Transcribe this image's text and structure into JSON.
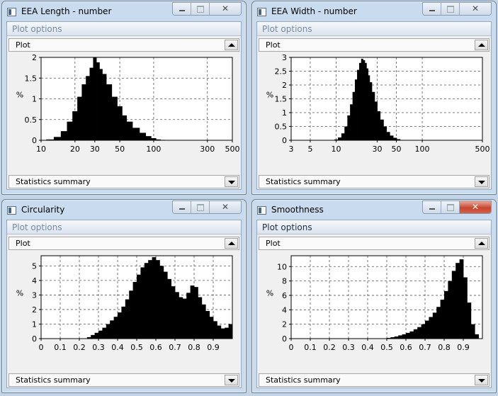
{
  "windows": [
    {
      "id": "length",
      "title": "EEA Length - number",
      "plot_options_label": "Plot options",
      "plot_combo_label": "Plot",
      "stats_combo_label": "Statistics summary",
      "window_controls": {
        "minimize": "minimize-icon",
        "maximize": "maximize-icon",
        "close_glyph": "✕"
      },
      "active": false
    },
    {
      "id": "width",
      "title": "EEA Width - number",
      "plot_options_label": "Plot options",
      "plot_combo_label": "Plot",
      "stats_combo_label": "Statistics summary",
      "window_controls": {
        "minimize": "minimize-icon",
        "maximize": "maximize-icon",
        "close_glyph": "✕"
      },
      "active": false
    },
    {
      "id": "circularity",
      "title": "Circularity",
      "plot_options_label": "Plot options",
      "plot_combo_label": "Plot",
      "stats_combo_label": "Statistics summary",
      "window_controls": {
        "minimize": "minimize-icon",
        "maximize": "maximize-icon",
        "close_glyph": "✕"
      },
      "active": false
    },
    {
      "id": "smoothness",
      "title": "Smoothness",
      "plot_options_label": "Plot options",
      "plot_combo_label": "Plot",
      "stats_combo_label": "Statistics summary",
      "window_controls": {
        "minimize": "minimize-icon",
        "maximize": "maximize-icon",
        "close_glyph": "✕"
      },
      "active": true
    }
  ],
  "colors": {
    "bars": "#000000",
    "close_active": "#c8462f",
    "desktop": "#c3d4e7",
    "frame": "#c9dbee"
  },
  "chart_data": [
    {
      "type": "bar",
      "xscale": "log",
      "xlim": [
        10,
        500
      ],
      "ylim": [
        0,
        2
      ],
      "ylabel": "%",
      "xticks": [
        10,
        20,
        30,
        50,
        100,
        300,
        500
      ],
      "yticks": [
        0,
        0.5,
        1,
        1.5,
        2
      ],
      "grid": true,
      "x": [
        12,
        14,
        16,
        18,
        20,
        22,
        24,
        26,
        28,
        30,
        32,
        34,
        36,
        40,
        45,
        50,
        55,
        60,
        70,
        80,
        90,
        100,
        110,
        120
      ],
      "values": [
        0.02,
        0.08,
        0.22,
        0.45,
        0.7,
        1.05,
        1.35,
        1.55,
        1.75,
        2.0,
        1.88,
        1.72,
        1.6,
        1.35,
        1.05,
        0.82,
        0.6,
        0.45,
        0.3,
        0.18,
        0.1,
        0.05,
        0.02,
        0.01
      ]
    },
    {
      "type": "bar",
      "xscale": "log",
      "xlim": [
        3,
        500
      ],
      "ylim": [
        0,
        3
      ],
      "ylabel": "%",
      "xticks": [
        3,
        5,
        10,
        30,
        50,
        100,
        500
      ],
      "yticks": [
        0,
        0.5,
        1,
        1.5,
        2,
        2.5,
        3
      ],
      "grid": true,
      "x": [
        10,
        11,
        12,
        13,
        14,
        15,
        16,
        17,
        18,
        19,
        20,
        21,
        22,
        23,
        24,
        25,
        27,
        29,
        31,
        34,
        37,
        40,
        44,
        48,
        53,
        58
      ],
      "values": [
        0.03,
        0.1,
        0.25,
        0.5,
        0.9,
        1.3,
        1.75,
        2.2,
        2.55,
        2.8,
        2.95,
        2.9,
        2.8,
        2.6,
        2.35,
        2.1,
        1.75,
        1.4,
        1.05,
        0.75,
        0.5,
        0.3,
        0.17,
        0.09,
        0.04,
        0.01
      ]
    },
    {
      "type": "bar",
      "xscale": "linear",
      "xlim": [
        0,
        1
      ],
      "ylim": [
        0,
        5.7
      ],
      "ylabel": "%",
      "xticks": [
        0,
        0.1,
        0.2,
        0.3,
        0.4,
        0.5,
        0.6,
        0.7,
        0.8,
        0.9
      ],
      "yticks": [
        0,
        1,
        2,
        3,
        4,
        5
      ],
      "grid": true,
      "x": [
        0.25,
        0.27,
        0.29,
        0.31,
        0.33,
        0.35,
        0.37,
        0.39,
        0.41,
        0.43,
        0.45,
        0.47,
        0.49,
        0.51,
        0.53,
        0.55,
        0.57,
        0.59,
        0.61,
        0.63,
        0.65,
        0.67,
        0.69,
        0.71,
        0.73,
        0.75,
        0.77,
        0.79,
        0.81,
        0.83,
        0.85,
        0.87,
        0.89,
        0.91,
        0.93,
        0.95,
        0.97,
        0.99
      ],
      "values": [
        0.1,
        0.25,
        0.4,
        0.55,
        0.75,
        1.0,
        1.25,
        1.5,
        1.8,
        2.2,
        2.7,
        3.3,
        3.9,
        4.4,
        4.9,
        5.2,
        5.4,
        5.6,
        5.4,
        5.0,
        4.6,
        4.1,
        3.6,
        3.2,
        2.85,
        2.75,
        3.15,
        3.65,
        3.55,
        2.85,
        2.35,
        1.9,
        1.5,
        1.2,
        0.9,
        0.7,
        0.75,
        1.0
      ]
    },
    {
      "type": "bar",
      "xscale": "linear",
      "xlim": [
        0,
        1
      ],
      "ylim": [
        0,
        11.5
      ],
      "ylabel": "%",
      "xticks": [
        0,
        0.1,
        0.2,
        0.3,
        0.4,
        0.5,
        0.6,
        0.7,
        0.8,
        0.9
      ],
      "yticks": [
        0,
        2,
        4,
        6,
        8,
        10
      ],
      "grid": true,
      "x": [
        0.51,
        0.53,
        0.55,
        0.57,
        0.59,
        0.61,
        0.63,
        0.65,
        0.67,
        0.69,
        0.71,
        0.73,
        0.75,
        0.77,
        0.79,
        0.81,
        0.83,
        0.85,
        0.87,
        0.89,
        0.91,
        0.93,
        0.95,
        0.97
      ],
      "values": [
        0.1,
        0.2,
        0.3,
        0.45,
        0.6,
        0.8,
        1.0,
        1.3,
        1.6,
        2.0,
        2.5,
        3.0,
        3.6,
        4.4,
        5.4,
        6.6,
        8.0,
        9.4,
        10.5,
        11.0,
        8.5,
        5.0,
        2.0,
        0.6
      ]
    }
  ]
}
